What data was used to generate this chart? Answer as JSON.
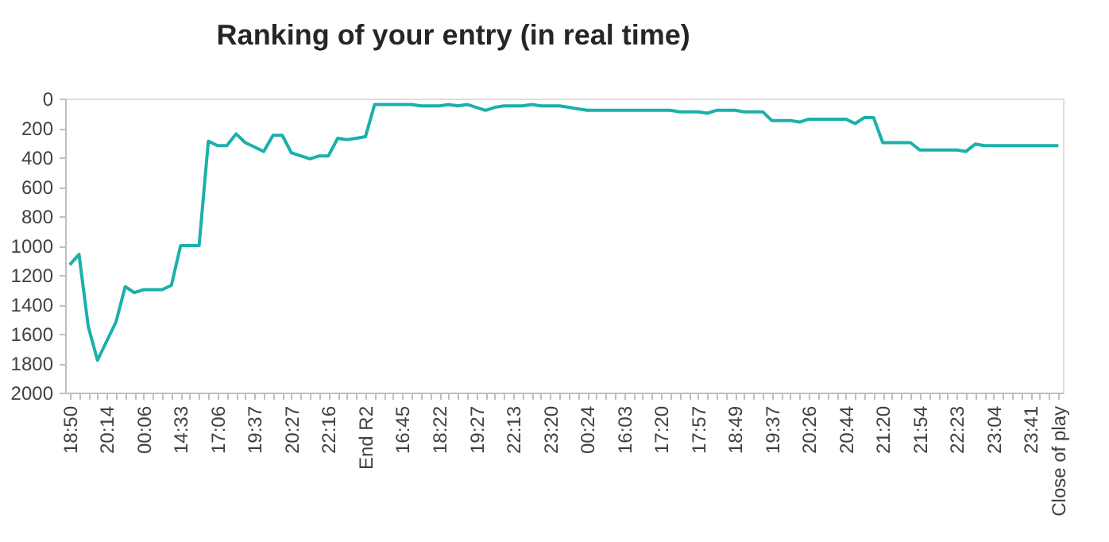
{
  "chart_data": {
    "type": "line",
    "title": "Ranking of your entry (in real time)",
    "categories": [
      "18:50",
      null,
      null,
      null,
      "20:14",
      null,
      null,
      null,
      "00:06",
      null,
      null,
      null,
      "14:33",
      null,
      null,
      null,
      "17:06",
      null,
      null,
      null,
      "19:37",
      null,
      null,
      null,
      "20:27",
      null,
      null,
      null,
      "22:16",
      null,
      null,
      null,
      "End R2",
      null,
      null,
      null,
      "16:45",
      null,
      null,
      null,
      "18:22",
      null,
      null,
      null,
      "19:27",
      null,
      null,
      null,
      "22:13",
      null,
      null,
      null,
      "23:20",
      null,
      null,
      null,
      "00:24",
      null,
      null,
      null,
      "16:03",
      null,
      null,
      null,
      "17:20",
      null,
      null,
      null,
      "17:57",
      null,
      null,
      null,
      "18:49",
      null,
      null,
      null,
      "19:37",
      null,
      null,
      null,
      "20:26",
      null,
      null,
      null,
      "20:44",
      null,
      null,
      null,
      "21:20",
      null,
      null,
      null,
      "21:54",
      null,
      null,
      null,
      "22:23",
      null,
      null,
      null,
      "23:04",
      null,
      null,
      null,
      "23:41",
      null,
      null,
      "Close of play"
    ],
    "series": [
      {
        "color": "#1bb0ab",
        "values": [
          1130,
          1060,
          1550,
          1780,
          1650,
          1520,
          1280,
          1320,
          1300,
          1300,
          1300,
          1270,
          1000,
          1000,
          1000,
          290,
          320,
          320,
          240,
          300,
          330,
          360,
          250,
          250,
          370,
          390,
          410,
          390,
          390,
          270,
          280,
          270,
          260,
          40,
          40,
          40,
          40,
          40,
          50,
          50,
          50,
          40,
          50,
          40,
          60,
          80,
          60,
          50,
          50,
          50,
          40,
          50,
          50,
          50,
          60,
          70,
          80,
          80,
          80,
          80,
          80,
          80,
          80,
          80,
          80,
          80,
          90,
          90,
          90,
          100,
          80,
          80,
          80,
          90,
          90,
          90,
          150,
          150,
          150,
          160,
          140,
          140,
          140,
          140,
          140,
          170,
          130,
          130,
          300,
          300,
          300,
          300,
          350,
          350,
          350,
          350,
          350,
          360,
          310,
          320,
          320,
          320,
          320,
          320,
          320,
          320,
          320,
          320
        ]
      }
    ],
    "ylim": [
      2000,
      0
    ],
    "yticks": [
      0,
      200,
      400,
      600,
      800,
      1000,
      1200,
      1400,
      1600,
      1800,
      2000
    ],
    "grid": false,
    "marker": "none",
    "line_style": "solid"
  }
}
